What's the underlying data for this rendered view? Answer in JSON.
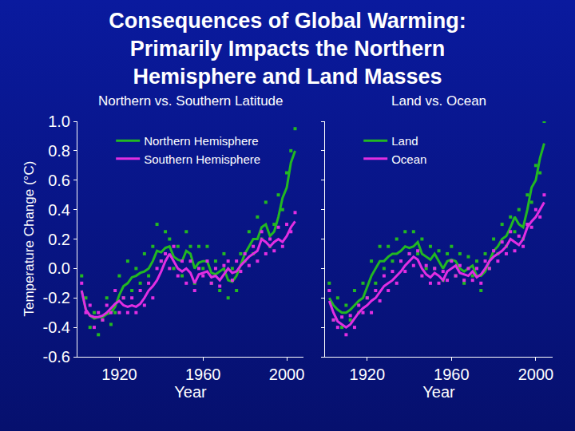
{
  "title": "Consequences of Global Warming:\nPrimarily Impacts the Northern\nHemisphere and Land Masses",
  "chart_data": [
    {
      "type": "line",
      "title": "Northern vs. Southern Latitude",
      "x_label": "Year",
      "y_label": "Temperature Change (°C)",
      "xlim": [
        1900,
        2008
      ],
      "xticks": [
        1920,
        1960,
        2000
      ],
      "ylim": [
        -0.6,
        1.0
      ],
      "yticks": [
        -0.6,
        -0.4,
        -0.2,
        {
          "value": 0,
          "label": "0.0"
        },
        0.2,
        0.4,
        0.6,
        0.8,
        {
          "value": 1,
          "label": "1.0"
        }
      ],
      "grid": false,
      "legend": "upper left",
      "x": [
        1902,
        1904,
        1906,
        1908,
        1910,
        1912,
        1914,
        1916,
        1918,
        1920,
        1922,
        1924,
        1926,
        1928,
        1930,
        1932,
        1934,
        1936,
        1938,
        1940,
        1942,
        1944,
        1946,
        1948,
        1950,
        1952,
        1954,
        1956,
        1958,
        1960,
        1962,
        1964,
        1966,
        1968,
        1970,
        1972,
        1974,
        1976,
        1978,
        1980,
        1982,
        1984,
        1986,
        1988,
        1990,
        1992,
        1994,
        1996,
        1998,
        2000,
        2002,
        2004
      ],
      "series": [
        {
          "name": "Northern Hemisphere",
          "color": "#22b822",
          "values": [
            -0.15,
            -0.28,
            -0.32,
            -0.34,
            -0.33,
            -0.33,
            -0.31,
            -0.3,
            -0.26,
            -0.18,
            -0.12,
            -0.1,
            -0.06,
            -0.05,
            -0.03,
            -0.02,
            0.0,
            0.05,
            0.12,
            0.11,
            0.14,
            0.15,
            0.08,
            0.06,
            0.05,
            0.12,
            0.1,
            0.0,
            0.04,
            0.05,
            0.05,
            -0.03,
            -0.04,
            -0.02,
            0.0,
            -0.08,
            -0.09,
            -0.05,
            0.02,
            0.1,
            0.15,
            0.2,
            0.2,
            0.28,
            0.3,
            0.22,
            0.25,
            0.35,
            0.48,
            0.55,
            0.72,
            0.8
          ],
          "points": [
            -0.05,
            -0.2,
            -0.4,
            -0.3,
            -0.45,
            -0.35,
            -0.2,
            -0.38,
            -0.3,
            -0.05,
            -0.2,
            0.05,
            -0.15,
            0.0,
            -0.1,
            0.1,
            -0.05,
            0.15,
            0.3,
            0.05,
            0.25,
            0.2,
            0.0,
            0.15,
            -0.05,
            0.25,
            0.15,
            -0.1,
            0.15,
            0.0,
            0.15,
            -0.1,
            0.05,
            -0.15,
            0.1,
            -0.2,
            0.0,
            -0.15,
            0.1,
            0.05,
            0.25,
            0.1,
            0.35,
            0.2,
            0.45,
            0.15,
            0.3,
            0.5,
            0.4,
            0.65,
            0.8,
            0.95
          ]
        },
        {
          "name": "Southern Hemisphere",
          "color": "#e22ee2",
          "values": [
            -0.15,
            -0.28,
            -0.32,
            -0.33,
            -0.33,
            -0.32,
            -0.3,
            -0.27,
            -0.24,
            -0.22,
            -0.25,
            -0.26,
            -0.25,
            -0.26,
            -0.24,
            -0.2,
            -0.15,
            -0.12,
            -0.08,
            -0.02,
            0.05,
            0.1,
            0.05,
            0.0,
            -0.02,
            0.0,
            -0.03,
            -0.1,
            -0.04,
            -0.03,
            -0.02,
            -0.06,
            -0.05,
            -0.08,
            -0.04,
            0.0,
            -0.03,
            -0.02,
            0.02,
            0.05,
            0.08,
            0.1,
            0.12,
            0.2,
            0.18,
            0.15,
            0.18,
            0.2,
            0.18,
            0.22,
            0.28,
            0.32
          ],
          "points": [
            -0.1,
            -0.3,
            -0.25,
            -0.4,
            -0.3,
            -0.35,
            -0.25,
            -0.3,
            -0.15,
            -0.3,
            -0.2,
            -0.3,
            -0.2,
            -0.3,
            -0.15,
            -0.25,
            -0.1,
            -0.2,
            0.0,
            0.05,
            0.1,
            0.0,
            0.15,
            -0.05,
            0.05,
            -0.1,
            0.05,
            -0.15,
            0.0,
            -0.05,
            0.05,
            -0.1,
            0.0,
            -0.12,
            0.02,
            0.05,
            -0.08,
            0.05,
            -0.02,
            0.1,
            0.02,
            0.15,
            0.05,
            0.25,
            0.1,
            0.2,
            0.12,
            0.28,
            0.15,
            0.3,
            0.25,
            0.38
          ]
        }
      ]
    },
    {
      "type": "line",
      "title": "Land vs. Ocean",
      "x_label": "Year",
      "xlim": [
        1900,
        2008
      ],
      "xticks": [
        1920,
        1960,
        2000
      ],
      "ylim": [
        -0.6,
        1.0
      ],
      "yticks": [
        -0.6,
        -0.4,
        -0.2,
        0,
        0.2,
        0.4,
        0.6,
        0.8,
        1
      ],
      "tick_labels": "x",
      "grid": false,
      "legend": "upper left",
      "x": [
        1902,
        1904,
        1906,
        1908,
        1910,
        1912,
        1914,
        1916,
        1918,
        1920,
        1922,
        1924,
        1926,
        1928,
        1930,
        1932,
        1934,
        1936,
        1938,
        1940,
        1942,
        1944,
        1946,
        1948,
        1950,
        1952,
        1954,
        1956,
        1958,
        1960,
        1962,
        1964,
        1966,
        1968,
        1970,
        1972,
        1974,
        1976,
        1978,
        1980,
        1982,
        1984,
        1986,
        1988,
        1990,
        1992,
        1994,
        1996,
        1998,
        2000,
        2002,
        2004
      ],
      "series": [
        {
          "name": "Land",
          "color": "#22b822",
          "values": [
            -0.2,
            -0.25,
            -0.28,
            -0.3,
            -0.3,
            -0.28,
            -0.25,
            -0.22,
            -0.2,
            -0.12,
            -0.05,
            0.0,
            0.05,
            0.05,
            0.08,
            0.1,
            0.1,
            0.12,
            0.15,
            0.14,
            0.15,
            0.18,
            0.1,
            0.08,
            0.06,
            0.1,
            0.05,
            0.0,
            0.05,
            0.06,
            0.05,
            0.0,
            -0.02,
            0.0,
            0.02,
            -0.05,
            -0.05,
            -0.02,
            0.05,
            0.12,
            0.15,
            0.2,
            0.22,
            0.28,
            0.35,
            0.3,
            0.28,
            0.4,
            0.55,
            0.6,
            0.75,
            0.85
          ],
          "points": [
            -0.1,
            -0.35,
            -0.2,
            -0.4,
            -0.25,
            -0.35,
            -0.15,
            -0.3,
            -0.1,
            -0.2,
            0.05,
            -0.1,
            0.15,
            0.0,
            0.15,
            0.05,
            0.2,
            0.05,
            0.25,
            0.1,
            0.25,
            0.1,
            0.2,
            0.0,
            0.15,
            0.0,
            0.12,
            -0.08,
            0.1,
            0.15,
            -0.05,
            0.1,
            -0.1,
            0.08,
            -0.05,
            0.05,
            -0.15,
            0.1,
            0.0,
            0.2,
            0.1,
            0.3,
            0.15,
            0.35,
            0.25,
            0.4,
            0.2,
            0.5,
            0.45,
            0.7,
            0.65,
            1.0
          ]
        },
        {
          "name": "Ocean",
          "color": "#e22ee2",
          "values": [
            -0.22,
            -0.3,
            -0.36,
            -0.38,
            -0.4,
            -0.38,
            -0.34,
            -0.3,
            -0.27,
            -0.25,
            -0.22,
            -0.2,
            -0.16,
            -0.12,
            -0.1,
            -0.08,
            -0.05,
            -0.02,
            0.02,
            0.05,
            0.08,
            0.06,
            0.0,
            -0.04,
            -0.06,
            -0.03,
            -0.05,
            -0.08,
            -0.02,
            0.0,
            0.02,
            -0.03,
            -0.04,
            -0.05,
            -0.02,
            -0.06,
            -0.04,
            0.0,
            0.05,
            0.08,
            0.1,
            0.12,
            0.15,
            0.2,
            0.18,
            0.16,
            0.2,
            0.28,
            0.32,
            0.35,
            0.4,
            0.45
          ],
          "points": [
            -0.15,
            -0.35,
            -0.4,
            -0.33,
            -0.45,
            -0.32,
            -0.4,
            -0.25,
            -0.3,
            -0.2,
            -0.3,
            -0.15,
            -0.22,
            -0.05,
            -0.15,
            -0.02,
            -0.1,
            0.05,
            -0.02,
            0.1,
            0.02,
            0.12,
            -0.05,
            0.02,
            -0.1,
            0.0,
            -0.1,
            -0.02,
            -0.08,
            0.05,
            -0.05,
            0.02,
            -0.08,
            0.0,
            -0.08,
            0.0,
            -0.1,
            0.05,
            0.0,
            0.12,
            0.05,
            0.18,
            0.1,
            0.25,
            0.12,
            0.22,
            0.15,
            0.3,
            0.28,
            0.4,
            0.35,
            0.5
          ]
        }
      ]
    }
  ]
}
